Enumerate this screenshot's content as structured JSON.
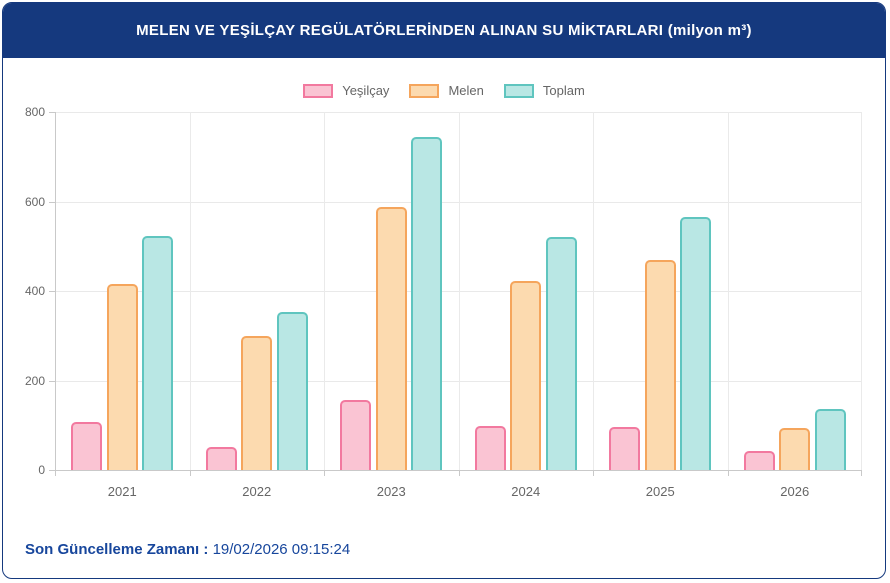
{
  "header": {
    "title": "MELEN VE YEŞİLÇAY REGÜLATÖRLERİNDEN ALINAN SU MİKTARLARI (milyon m³)"
  },
  "footer": {
    "label": "Son Güncelleme Zamanı :",
    "value": "19/02/2026 09:15:24"
  },
  "colors": {
    "header_bg": "#15397E",
    "card_border": "#15397E",
    "footer_text": "#17469C",
    "axis_text": "#666666",
    "grid_line": "#eaeaea",
    "axis_line": "#c9c9c9"
  },
  "chart_data": {
    "type": "bar",
    "title": "MELEN VE YEŞİLÇAY REGÜLATÖRLERİNDEN ALINAN SU MİKTARLARI (milyon m³)",
    "xlabel": "",
    "ylabel": "",
    "categories": [
      "2021",
      "2022",
      "2023",
      "2024",
      "2025",
      "2026"
    ],
    "series": [
      {
        "name": "Yeşilçay",
        "fill": "#FAC4D3",
        "border": "#F2799F",
        "values": [
          107,
          52,
          157,
          98,
          96,
          42
        ]
      },
      {
        "name": "Melen",
        "fill": "#FCDAAF",
        "border": "#F5A55C",
        "values": [
          415,
          300,
          588,
          422,
          469,
          95
        ]
      },
      {
        "name": "Toplam",
        "fill": "#B9E7E4",
        "border": "#5FC5BF",
        "values": [
          522,
          352,
          745,
          520,
          565,
          137
        ]
      }
    ],
    "ylim": [
      0,
      800
    ],
    "yticks": [
      0,
      200,
      400,
      600,
      800
    ],
    "grid": true,
    "legend_position": "top"
  }
}
